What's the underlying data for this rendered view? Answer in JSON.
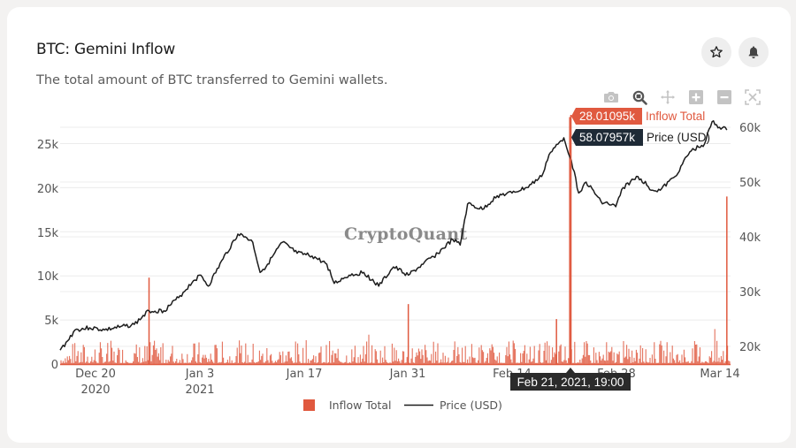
{
  "card": {
    "title": "BTC: Gemini Inflow",
    "subtitle": "The total amount of BTC transferred to Gemini wallets.",
    "actions": [
      {
        "name": "favorite-star",
        "icon": "star-icon"
      },
      {
        "name": "alert-bell",
        "icon": "bell-icon"
      }
    ]
  },
  "modebar": [
    {
      "name": "download-png",
      "icon": "camera-icon"
    },
    {
      "name": "zoom",
      "icon": "zoom-icon",
      "active": true
    },
    {
      "name": "pan",
      "icon": "pan-icon"
    },
    {
      "name": "zoom-in",
      "icon": "plus-box-icon"
    },
    {
      "name": "zoom-out",
      "icon": "minus-box-icon"
    },
    {
      "name": "autoscale",
      "icon": "autoscale-icon"
    }
  ],
  "watermark": "CryptoQuant",
  "hover": {
    "inflow_value": "28.01095k",
    "inflow_label": "Inflow Total",
    "price_value": "58.07957k",
    "price_label": "Price (USD)",
    "x_label": "Feb 21, 2021, 19:00"
  },
  "legend": {
    "inflow": "Inflow Total",
    "price": "Price (USD)"
  },
  "colors": {
    "inflow": "#e0593f",
    "price": "#1c1c1c",
    "price_tooltip_bg": "#1e2a36",
    "x_tooltip_bg": "#2b2b2b"
  },
  "chart_data": {
    "type": "bar+line",
    "title": "BTC: Gemini Inflow",
    "subtitle": "The total amount of BTC transferred to Gemini wallets.",
    "x_ticks": [
      {
        "label": "Dec 20",
        "sub": "2020"
      },
      {
        "label": "Jan 3",
        "sub": "2021"
      },
      {
        "label": "Jan 17",
        "sub": ""
      },
      {
        "label": "Jan 31",
        "sub": ""
      },
      {
        "label": "Feb 14",
        "sub": ""
      },
      {
        "label": "Feb 28",
        "sub": ""
      },
      {
        "label": "Mar 14",
        "sub": ""
      }
    ],
    "y_left": {
      "label": "Inflow Total",
      "ticks": [
        "0",
        "5k",
        "10k",
        "15k",
        "20k",
        "25k"
      ],
      "range": [
        0,
        28500
      ]
    },
    "y_right": {
      "label": "Price (USD)",
      "ticks": [
        "20k",
        "30k",
        "40k",
        "50k",
        "60k"
      ],
      "range": [
        16500,
        64000
      ]
    },
    "grid": true,
    "legend_position": "bottom",
    "series": [
      {
        "name": "Inflow Total",
        "type": "bar",
        "color": "#e0593f",
        "notable_spikes": [
          {
            "date": "2020-12-27",
            "value": 9800
          },
          {
            "date": "2021-01-31",
            "value": 6800
          },
          {
            "date": "2021-02-20",
            "value": 5100
          },
          {
            "date": "2021-02-21 19:00",
            "value": 28010.95
          },
          {
            "date": "2021-03-15",
            "value": 19000
          }
        ],
        "baseline_typical": [
          200,
          2000
        ]
      },
      {
        "name": "Price (USD)",
        "type": "line",
        "color": "#1c1c1c",
        "points": [
          [
            "2020-12-15",
            19300
          ],
          [
            "2020-12-16",
            21000
          ],
          [
            "2020-12-17",
            23000
          ],
          [
            "2020-12-19",
            23400
          ],
          [
            "2020-12-21",
            23000
          ],
          [
            "2020-12-23",
            23500
          ],
          [
            "2020-12-25",
            24000
          ],
          [
            "2020-12-27",
            26500
          ],
          [
            "2020-12-29",
            26500
          ],
          [
            "2020-12-31",
            28900
          ],
          [
            "2021-01-02",
            32000
          ],
          [
            "2021-01-03",
            33000
          ],
          [
            "2021-01-04",
            31000
          ],
          [
            "2021-01-06",
            36000
          ],
          [
            "2021-01-08",
            40500
          ],
          [
            "2021-01-09",
            40000
          ],
          [
            "2021-01-10",
            39000
          ],
          [
            "2021-01-11",
            33500
          ],
          [
            "2021-01-12",
            35000
          ],
          [
            "2021-01-14",
            39000
          ],
          [
            "2021-01-16",
            37000
          ],
          [
            "2021-01-18",
            36500
          ],
          [
            "2021-01-20",
            35000
          ],
          [
            "2021-01-21",
            31500
          ],
          [
            "2021-01-23",
            33000
          ],
          [
            "2021-01-25",
            33500
          ],
          [
            "2021-01-27",
            31000
          ],
          [
            "2021-01-29",
            34500
          ],
          [
            "2021-01-31",
            33000
          ],
          [
            "2021-02-02",
            35000
          ],
          [
            "2021-02-04",
            37000
          ],
          [
            "2021-02-06",
            39500
          ],
          [
            "2021-02-07",
            38500
          ],
          [
            "2021-02-08",
            46000
          ],
          [
            "2021-02-10",
            45000
          ],
          [
            "2021-02-12",
            47500
          ],
          [
            "2021-02-14",
            48000
          ],
          [
            "2021-02-16",
            49000
          ],
          [
            "2021-02-18",
            51000
          ],
          [
            "2021-02-19",
            55000
          ],
          [
            "2021-02-21",
            58079.57
          ],
          [
            "2021-02-22",
            54000
          ],
          [
            "2021-02-23",
            48000
          ],
          [
            "2021-02-24",
            50000
          ],
          [
            "2021-02-26",
            46500
          ],
          [
            "2021-02-28",
            45500
          ],
          [
            "2021-03-01",
            49000
          ],
          [
            "2021-03-03",
            51000
          ],
          [
            "2021-03-05",
            48500
          ],
          [
            "2021-03-06",
            48500
          ],
          [
            "2021-03-08",
            51000
          ],
          [
            "2021-03-10",
            55500
          ],
          [
            "2021-03-12",
            57000
          ],
          [
            "2021-03-13",
            61000
          ],
          [
            "2021-03-14",
            60000
          ],
          [
            "2021-03-15",
            59500
          ]
        ]
      }
    ],
    "hover": {
      "x": "Feb 21, 2021, 19:00",
      "Inflow Total": "28.01095k",
      "Price (USD)": "58.07957k"
    }
  }
}
